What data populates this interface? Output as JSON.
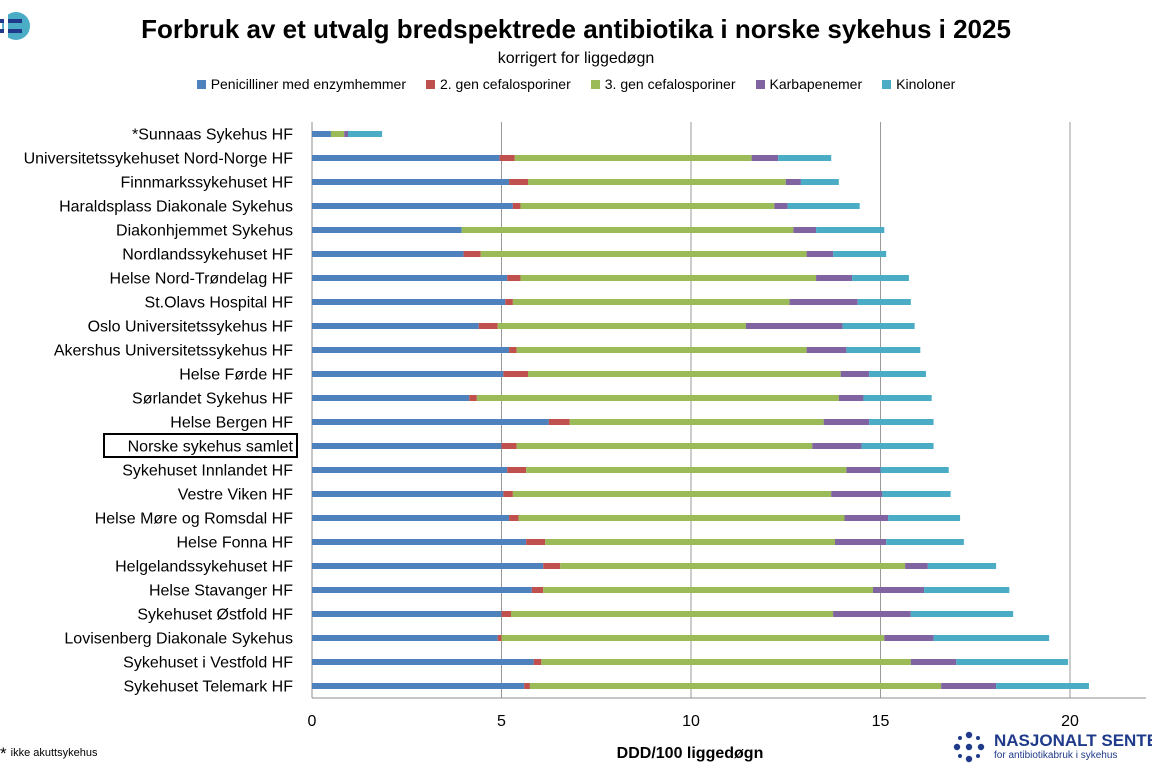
{
  "title": "Forbruk av et utvalg bredspektrede antibiotika i norske sykehus i 2025",
  "subtitle": "korrigert for liggedøgn",
  "footnote": {
    "marker": "*",
    "text": "ikke akuttsykehus"
  },
  "org": {
    "name": "NASJONALT SENTER",
    "sub": "for antibiotikabruk i sykehus",
    "color": "#1f3a8a"
  },
  "chart_data": {
    "type": "bar",
    "orientation": "horizontal",
    "stacked": true,
    "title": "Forbruk av et utvalg bredspektrede antibiotika i norske sykehus i 2025",
    "subtitle": "korrigert for liggedøgn",
    "xlabel": "DDD/100 liggedøgn",
    "ylabel": "",
    "xlim": [
      0,
      22
    ],
    "xticks": [
      0,
      5,
      10,
      15,
      20
    ],
    "grid": "vertical",
    "legend_position": "top",
    "highlighted_category": "Norske sykehus samlet",
    "categories": [
      "*Sunnaas Sykehus HF",
      "Universitetssykehuset Nord-Norge HF",
      "Finnmarkssykehuset HF",
      "Haraldsplass Diakonale Sykehus",
      "Diakonhjemmet Sykehus",
      "Nordlandssykehuset HF",
      "Helse Nord-Trøndelag HF",
      "St.Olavs Hospital HF",
      "Oslo Universitetssykehus HF",
      "Akershus Universitetssykehus HF",
      "Helse Førde HF",
      "Sørlandet Sykehus HF",
      "Helse Bergen HF",
      "Norske sykehus samlet",
      "Sykehuset Innlandet HF",
      "Vestre Viken HF",
      "Helse Møre og Romsdal HF",
      "Helse Fonna HF",
      "Helgelandssykehuset HF",
      "Helse Stavanger HF",
      "Sykehuset Østfold HF",
      "Lovisenberg Diakonale Sykehus",
      "Sykehuset i Vestfold HF",
      "Sykehuset Telemark HF"
    ],
    "series": [
      {
        "name": "Penicilliner med enzymhemmer",
        "color": "#4f81bd",
        "values": [
          0.5,
          4.95,
          5.2,
          5.3,
          3.95,
          4.0,
          5.15,
          5.1,
          4.4,
          5.2,
          5.05,
          4.15,
          6.25,
          5.0,
          5.15,
          5.05,
          5.2,
          5.65,
          6.1,
          5.8,
          5.0,
          4.9,
          5.85,
          5.6
        ]
      },
      {
        "name": "2. gen cefalosporiner",
        "color": "#c0504d",
        "values": [
          0.0,
          0.4,
          0.5,
          0.2,
          0.0,
          0.45,
          0.35,
          0.2,
          0.5,
          0.2,
          0.65,
          0.2,
          0.55,
          0.4,
          0.5,
          0.25,
          0.25,
          0.5,
          0.45,
          0.3,
          0.25,
          0.1,
          0.2,
          0.15
        ]
      },
      {
        "name": "3. gen cefalosporiner",
        "color": "#9bbb59",
        "values": [
          0.35,
          6.25,
          6.8,
          6.7,
          8.75,
          8.6,
          7.8,
          7.3,
          6.55,
          7.65,
          8.25,
          9.55,
          6.7,
          7.8,
          8.45,
          8.4,
          8.6,
          7.65,
          9.1,
          8.7,
          8.5,
          10.1,
          9.75,
          10.85
        ]
      },
      {
        "name": "Karbapenemer",
        "color": "#8064a2",
        "values": [
          0.1,
          0.7,
          0.4,
          0.35,
          0.6,
          0.7,
          0.95,
          1.8,
          2.55,
          1.05,
          0.75,
          0.65,
          1.2,
          1.3,
          0.9,
          1.35,
          1.15,
          1.35,
          0.6,
          1.35,
          2.05,
          1.3,
          1.2,
          1.45
        ]
      },
      {
        "name": "Kinoloner",
        "color": "#4bacc6",
        "values": [
          0.9,
          1.4,
          1.0,
          1.9,
          1.8,
          1.4,
          1.5,
          1.4,
          1.9,
          1.95,
          1.5,
          1.8,
          1.7,
          1.9,
          1.8,
          1.8,
          1.9,
          2.05,
          1.8,
          2.25,
          2.7,
          3.05,
          2.95,
          2.45
        ]
      }
    ]
  }
}
